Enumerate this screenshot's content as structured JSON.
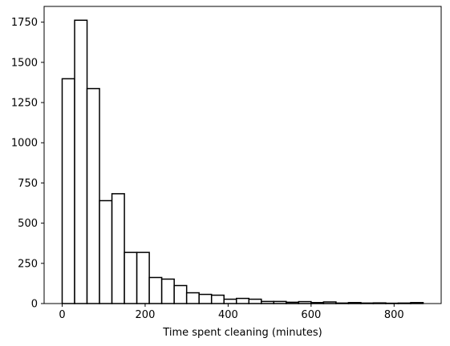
{
  "chart_data": {
    "type": "bar",
    "subtype": "histogram",
    "title": "",
    "xlabel": "Time spent cleaning (minutes)",
    "ylabel": "",
    "xlim": [
      -43.5,
      913.5
    ],
    "ylim": [
      0,
      1848
    ],
    "xticks": [
      0,
      200,
      400,
      600,
      800
    ],
    "yticks": [
      0,
      250,
      500,
      750,
      1000,
      1250,
      1500,
      1750
    ],
    "grid": false,
    "legend": "none",
    "bin_width": 30,
    "bin_edges": [
      0,
      30,
      60,
      90,
      120,
      150,
      180,
      210,
      240,
      270,
      300,
      330,
      360,
      390,
      420,
      450,
      480,
      510,
      540,
      570,
      600,
      630,
      660,
      690,
      720,
      750,
      780,
      810,
      840,
      870
    ],
    "values": [
      1398,
      1762,
      1337,
      640,
      683,
      318,
      318,
      162,
      152,
      112,
      67,
      57,
      52,
      27,
      32,
      27,
      13,
      13,
      8,
      12,
      6,
      10,
      3,
      6,
      3,
      4,
      2,
      3,
      6
    ],
    "bar_fill": "#ffffff",
    "bar_edge": "#000000"
  }
}
